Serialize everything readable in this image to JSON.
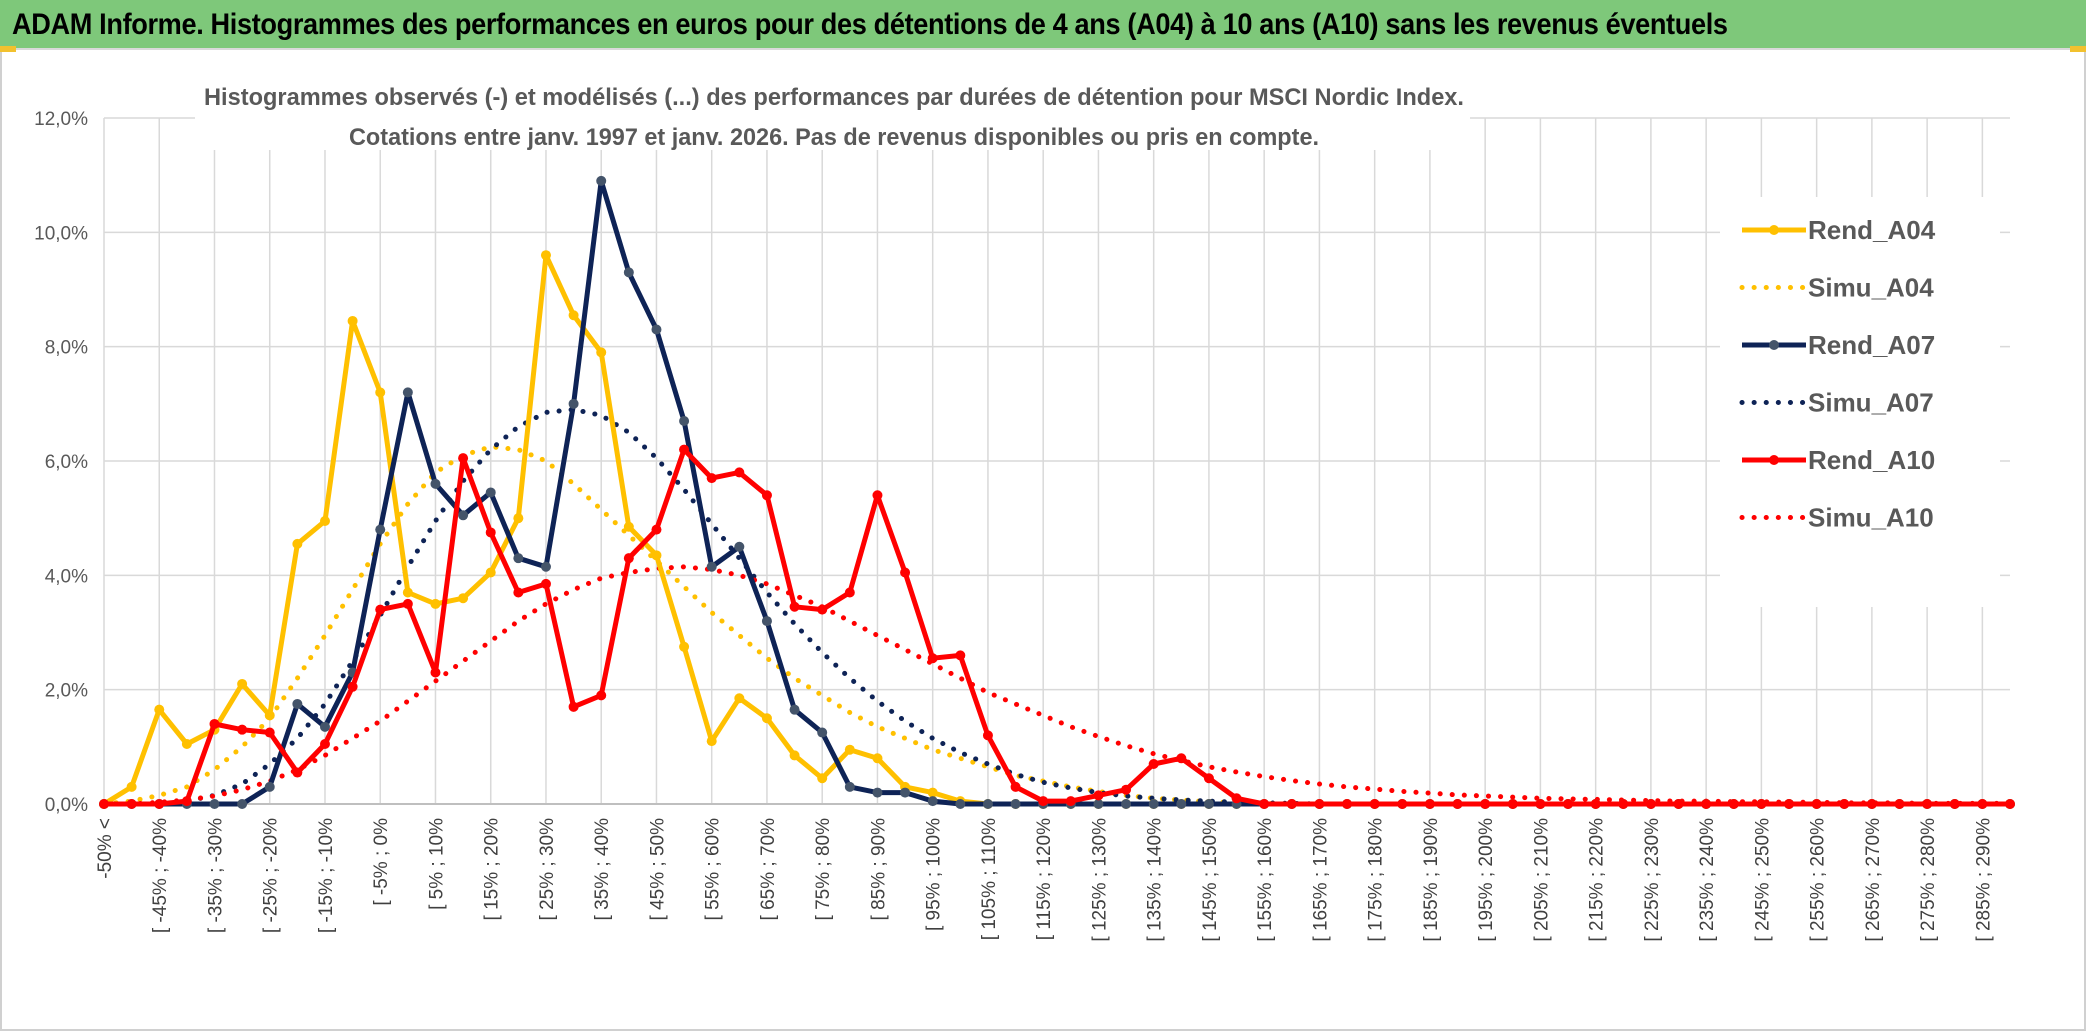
{
  "header": {
    "title": "ADAM Informe. Histogrammes des performances en euros pour des détentions de 4 ans (A04) à 10 ans (A10) sans les revenus éventuels"
  },
  "chart_data": {
    "type": "line",
    "title_line1": "Histogrammes observés (-) et modélisés (...) des performances par durées de détention pour MSCI Nordic Index.",
    "title_line2": "Cotations entre janv. 1997 et janv. 2026. Pas de revenus disponibles ou pris en compte.",
    "xlabel": "",
    "ylabel": "",
    "ylim": [
      0,
      12
    ],
    "y_ticks": [
      "0,0%",
      "2,0%",
      "4,0%",
      "6,0%",
      "8,0%",
      "10,0%",
      "12,0%"
    ],
    "grid": true,
    "legend_position": "right",
    "x_tick_labels": [
      "-50% <",
      "[ -45% ; -40%",
      "[ -35% ; -30%",
      "[ -25% ; -20%",
      "[ -15% ; -10%",
      "[ -5% ; 0%",
      "[ 5% ; 10%",
      "[ 15% ; 20%",
      "[ 25% ; 30%",
      "[ 35% ; 40%",
      "[ 45% ; 50%",
      "[ 55% ; 60%",
      "[ 65% ; 70%",
      "[ 75% ; 80%",
      "[ 85% ; 90%",
      "[ 95% ; 100%",
      "[ 105% ; 110%",
      "[ 115% ; 120%",
      "[ 125% ; 130%",
      "[ 135% ; 140%",
      "[ 145% ; 150%",
      "[ 155% ; 160%",
      "[ 165% ; 170%",
      "[ 175% ; 180%",
      "[ 185% ; 190%",
      "[ 195% ; 200%",
      "[ 205% ; 210%",
      "[ 215% ; 220%",
      "[ 225% ; 230%",
      "[ 235% ; 240%",
      "[ 245% ; 250%",
      "[ 255% ; 260%",
      "[ 265% ; 270%",
      "[ 275% ; 280%",
      "[ 285% ; 290%"
    ],
    "x_tick_every": 2,
    "n_categories": 70,
    "series": [
      {
        "name": "Rend_A04",
        "style": "solid",
        "color": "#ffc000",
        "values": [
          0,
          0.3,
          1.65,
          1.05,
          1.3,
          2.1,
          1.55,
          4.55,
          4.95,
          8.45,
          7.2,
          3.7,
          3.5,
          3.6,
          4.05,
          5.0,
          9.6,
          8.55,
          7.9,
          4.85,
          4.35,
          2.75,
          1.1,
          1.85,
          1.5,
          0.85,
          0.45,
          0.95,
          0.8,
          0.3,
          0.2,
          0.05,
          0,
          0,
          0,
          0,
          0,
          0,
          0,
          0,
          0,
          0,
          0,
          0,
          0,
          0,
          0,
          0,
          0,
          0,
          0,
          0,
          0,
          0,
          0,
          0,
          0,
          0,
          0,
          0,
          0,
          0,
          0,
          0,
          0,
          0,
          0,
          0,
          0,
          0
        ]
      },
      {
        "name": "Simu_A04",
        "style": "dotted",
        "color": "#ffc000",
        "values": [
          0,
          0.05,
          0.15,
          0.3,
          0.6,
          1.0,
          1.5,
          2.2,
          2.95,
          3.75,
          4.55,
          5.25,
          5.8,
          6.1,
          6.25,
          6.2,
          6.0,
          5.6,
          5.15,
          4.7,
          4.25,
          3.8,
          3.35,
          2.95,
          2.55,
          2.2,
          1.9,
          1.6,
          1.35,
          1.15,
          0.95,
          0.8,
          0.65,
          0.5,
          0.4,
          0.3,
          0.22,
          0.15,
          0.1,
          0.07,
          0.04,
          0.02,
          0.01,
          0,
          0,
          0,
          0,
          0,
          0,
          0,
          0,
          0,
          0,
          0,
          0,
          0,
          0,
          0,
          0,
          0,
          0,
          0,
          0,
          0,
          0,
          0,
          0,
          0,
          0,
          0
        ]
      },
      {
        "name": "Rend_A07",
        "style": "solid",
        "color": "#0e2356",
        "values": [
          0,
          0,
          0,
          0,
          0,
          0,
          0.3,
          1.75,
          1.35,
          2.3,
          4.8,
          7.2,
          5.6,
          5.05,
          5.45,
          4.3,
          4.15,
          7.0,
          10.9,
          9.3,
          8.3,
          6.7,
          4.15,
          4.5,
          3.2,
          1.65,
          1.25,
          0.3,
          0.2,
          0.2,
          0.05,
          0,
          0,
          0,
          0,
          0,
          0,
          0,
          0,
          0,
          0,
          0,
          0,
          0,
          0,
          0,
          0,
          0,
          0,
          0,
          0,
          0,
          0,
          0,
          0,
          0,
          0,
          0,
          0,
          0,
          0,
          0,
          0,
          0,
          0,
          0,
          0,
          0,
          0,
          0
        ]
      },
      {
        "name": "Simu_A07",
        "style": "dotted",
        "color": "#0e2356",
        "values": [
          0,
          0,
          0.01,
          0.05,
          0.15,
          0.35,
          0.7,
          1.15,
          1.75,
          2.5,
          3.3,
          4.15,
          4.95,
          5.65,
          6.2,
          6.6,
          6.85,
          6.9,
          6.8,
          6.5,
          6.05,
          5.5,
          4.9,
          4.3,
          3.7,
          3.15,
          2.65,
          2.2,
          1.8,
          1.45,
          1.15,
          0.9,
          0.7,
          0.52,
          0.38,
          0.28,
          0.2,
          0.14,
          0.1,
          0.07,
          0.05,
          0.03,
          0.02,
          0.01,
          0,
          0,
          0,
          0,
          0,
          0,
          0,
          0,
          0,
          0,
          0,
          0,
          0,
          0,
          0,
          0,
          0,
          0,
          0,
          0,
          0,
          0,
          0,
          0,
          0,
          0
        ]
      },
      {
        "name": "Rend_A10",
        "style": "solid",
        "color": "#ff0000",
        "values": [
          0,
          0,
          0,
          0.05,
          1.4,
          1.3,
          1.25,
          0.55,
          1.05,
          2.05,
          3.4,
          3.5,
          2.3,
          6.05,
          4.75,
          3.7,
          3.85,
          1.7,
          1.9,
          4.3,
          4.8,
          6.2,
          5.7,
          5.8,
          5.4,
          3.45,
          3.4,
          3.7,
          5.4,
          4.05,
          2.55,
          2.6,
          1.2,
          0.3,
          0.05,
          0.05,
          0.15,
          0.25,
          0.7,
          0.8,
          0.45,
          0.1,
          0,
          0,
          0,
          0,
          0,
          0,
          0,
          0,
          0,
          0,
          0,
          0,
          0,
          0,
          0,
          0,
          0,
          0,
          0,
          0,
          0,
          0,
          0,
          0,
          0,
          0,
          0,
          0
        ]
      },
      {
        "name": "Simu_A10",
        "style": "dotted",
        "color": "#ff0000",
        "values": [
          0,
          0,
          0.03,
          0.07,
          0.14,
          0.25,
          0.4,
          0.6,
          0.85,
          1.15,
          1.45,
          1.8,
          2.15,
          2.5,
          2.85,
          3.2,
          3.5,
          3.75,
          3.95,
          4.05,
          4.12,
          4.15,
          4.1,
          4.0,
          3.85,
          3.65,
          3.45,
          3.2,
          2.95,
          2.7,
          2.45,
          2.2,
          1.95,
          1.75,
          1.55,
          1.35,
          1.18,
          1.02,
          0.88,
          0.76,
          0.65,
          0.56,
          0.48,
          0.41,
          0.35,
          0.3,
          0.26,
          0.22,
          0.19,
          0.16,
          0.14,
          0.12,
          0.1,
          0.09,
          0.08,
          0.07,
          0.06,
          0.05,
          0.05,
          0.04,
          0.04,
          0.03,
          0.03,
          0.02,
          0.02,
          0.02,
          0.01,
          0.01,
          0.01,
          0.01
        ]
      }
    ]
  }
}
